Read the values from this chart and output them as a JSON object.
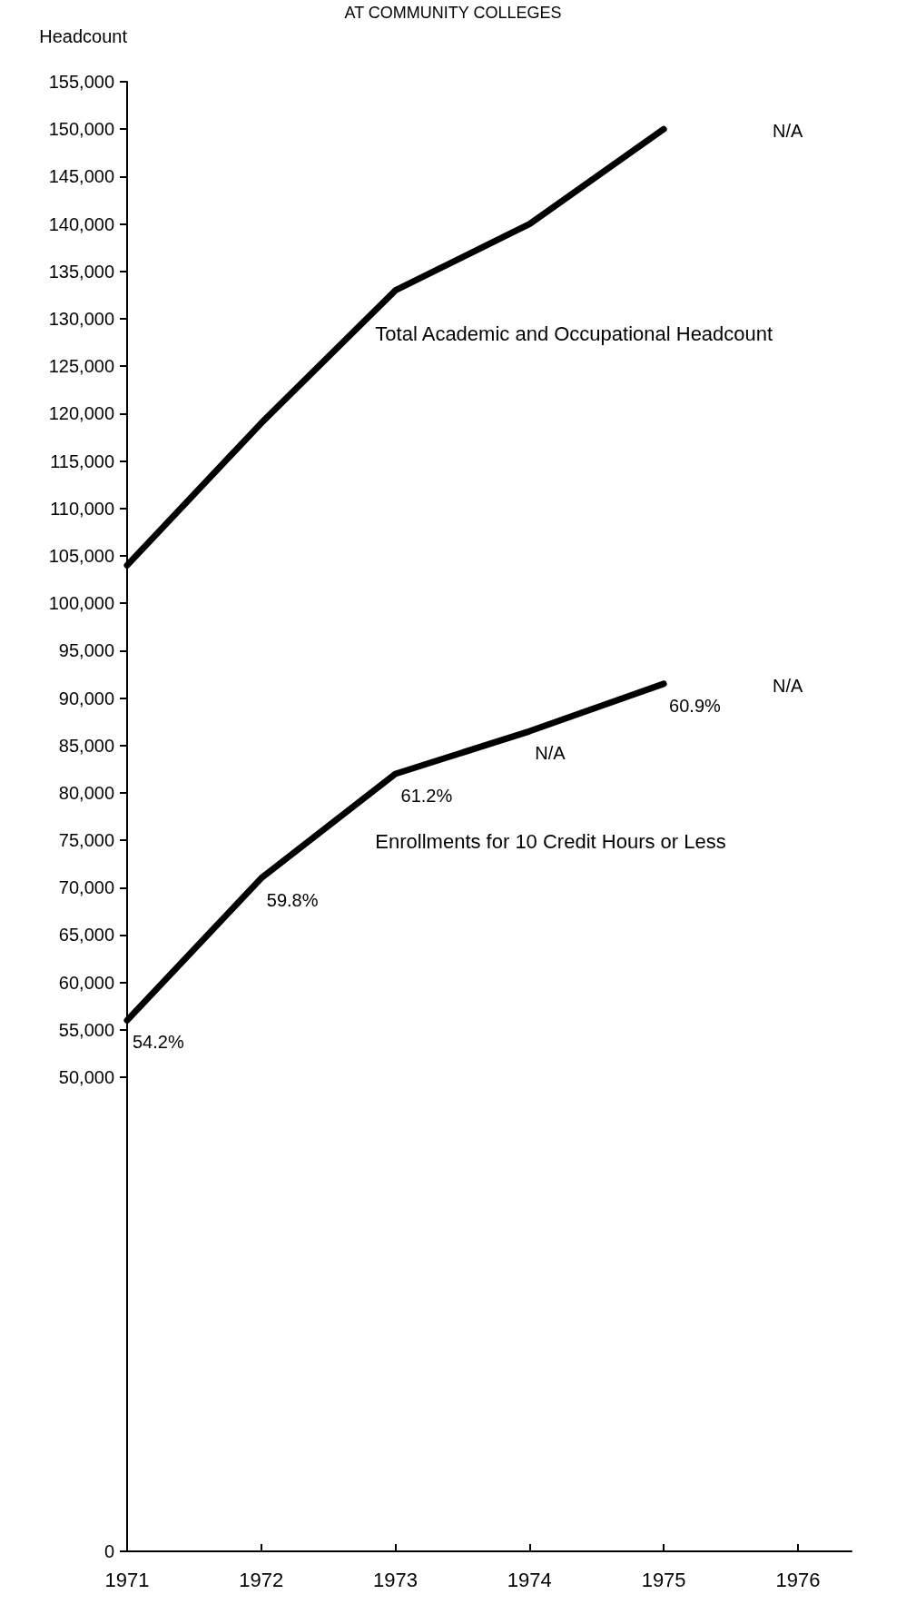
{
  "chart_data": {
    "type": "line",
    "title": "AT COMMUNITY COLLEGES",
    "ylabel": "Headcount",
    "x": [
      1971,
      1972,
      1973,
      1974,
      1975
    ],
    "series": [
      {
        "name": "Total Academic and Occupational Headcount",
        "color": "#000000",
        "values": [
          104000,
          119000,
          133000,
          140000,
          150000
        ]
      },
      {
        "name": "Enrollments for 10 Credit Hours or Less",
        "color": "#000000",
        "values": [
          56000,
          71000,
          82000,
          86500,
          91500
        ]
      }
    ],
    "xlim": [
      1971,
      1976.4
    ],
    "xticks": [
      1971,
      1972,
      1973,
      1974,
      1975,
      1976
    ],
    "ylim": [
      0,
      155000
    ],
    "yticks": [
      0,
      {
        "value": 50000,
        "label": "50,000"
      },
      {
        "value": 55000,
        "label": "55,000"
      },
      {
        "value": 60000,
        "label": "60,000"
      },
      {
        "value": 65000,
        "label": "65,000"
      },
      {
        "value": 70000,
        "label": "70,000"
      },
      {
        "value": 75000,
        "label": "75,000"
      },
      {
        "value": 80000,
        "label": "80,000"
      },
      {
        "value": 85000,
        "label": "85,000"
      },
      {
        "value": 90000,
        "label": "90,000"
      },
      {
        "value": 95000,
        "label": "95,000"
      },
      {
        "value": 100000,
        "label": "100,000"
      },
      {
        "value": 105000,
        "label": "105,000"
      },
      {
        "value": 110000,
        "label": "110,000"
      },
      {
        "value": 115000,
        "label": "115,000"
      },
      {
        "value": 120000,
        "label": "120,000"
      },
      {
        "value": 125000,
        "label": "125,000"
      },
      {
        "value": 130000,
        "label": "130,000"
      },
      {
        "value": 135000,
        "label": "135,000"
      },
      {
        "value": 140000,
        "label": "140,000"
      },
      {
        "value": 145000,
        "label": "145,000"
      },
      {
        "value": 150000,
        "label": "150,000"
      },
      {
        "value": 155000,
        "label": "155,000"
      }
    ],
    "annotations": [
      "N/A",
      "N/A",
      {
        "text": "54.2%",
        "x": 1971,
        "y": 56000
      },
      {
        "text": "59.8%",
        "x": 1972,
        "y": 71000
      },
      {
        "text": "61.2%",
        "x": 1973,
        "y": 82000
      },
      {
        "text": "N/A",
        "x": 1974,
        "y": 86500
      },
      {
        "text": "60.9%",
        "x": 1975,
        "y": 91500
      }
    ],
    "grid": false,
    "legend": false,
    "marker": "none",
    "line_style": "solid"
  }
}
